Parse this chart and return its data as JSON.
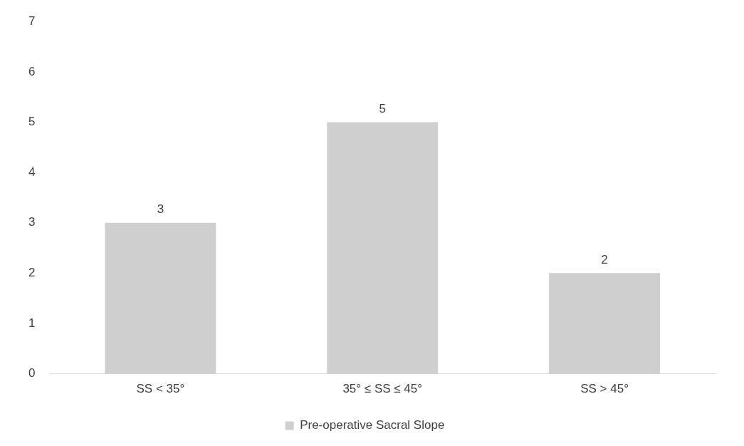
{
  "chart_data": {
    "type": "bar",
    "categories": [
      "SS < 35°",
      "35° ≤ SS ≤ 45°",
      "SS > 45°"
    ],
    "series": [
      {
        "name": "Pre-operative Sacral Slope",
        "color": "#d0cfd0",
        "values": [
          3,
          5,
          2
        ]
      }
    ],
    "ylim": [
      0,
      7
    ],
    "yticks": [
      0,
      1,
      2,
      3,
      4,
      5,
      6,
      7
    ],
    "grid": false,
    "legend": "bottom",
    "data_labels": true
  }
}
